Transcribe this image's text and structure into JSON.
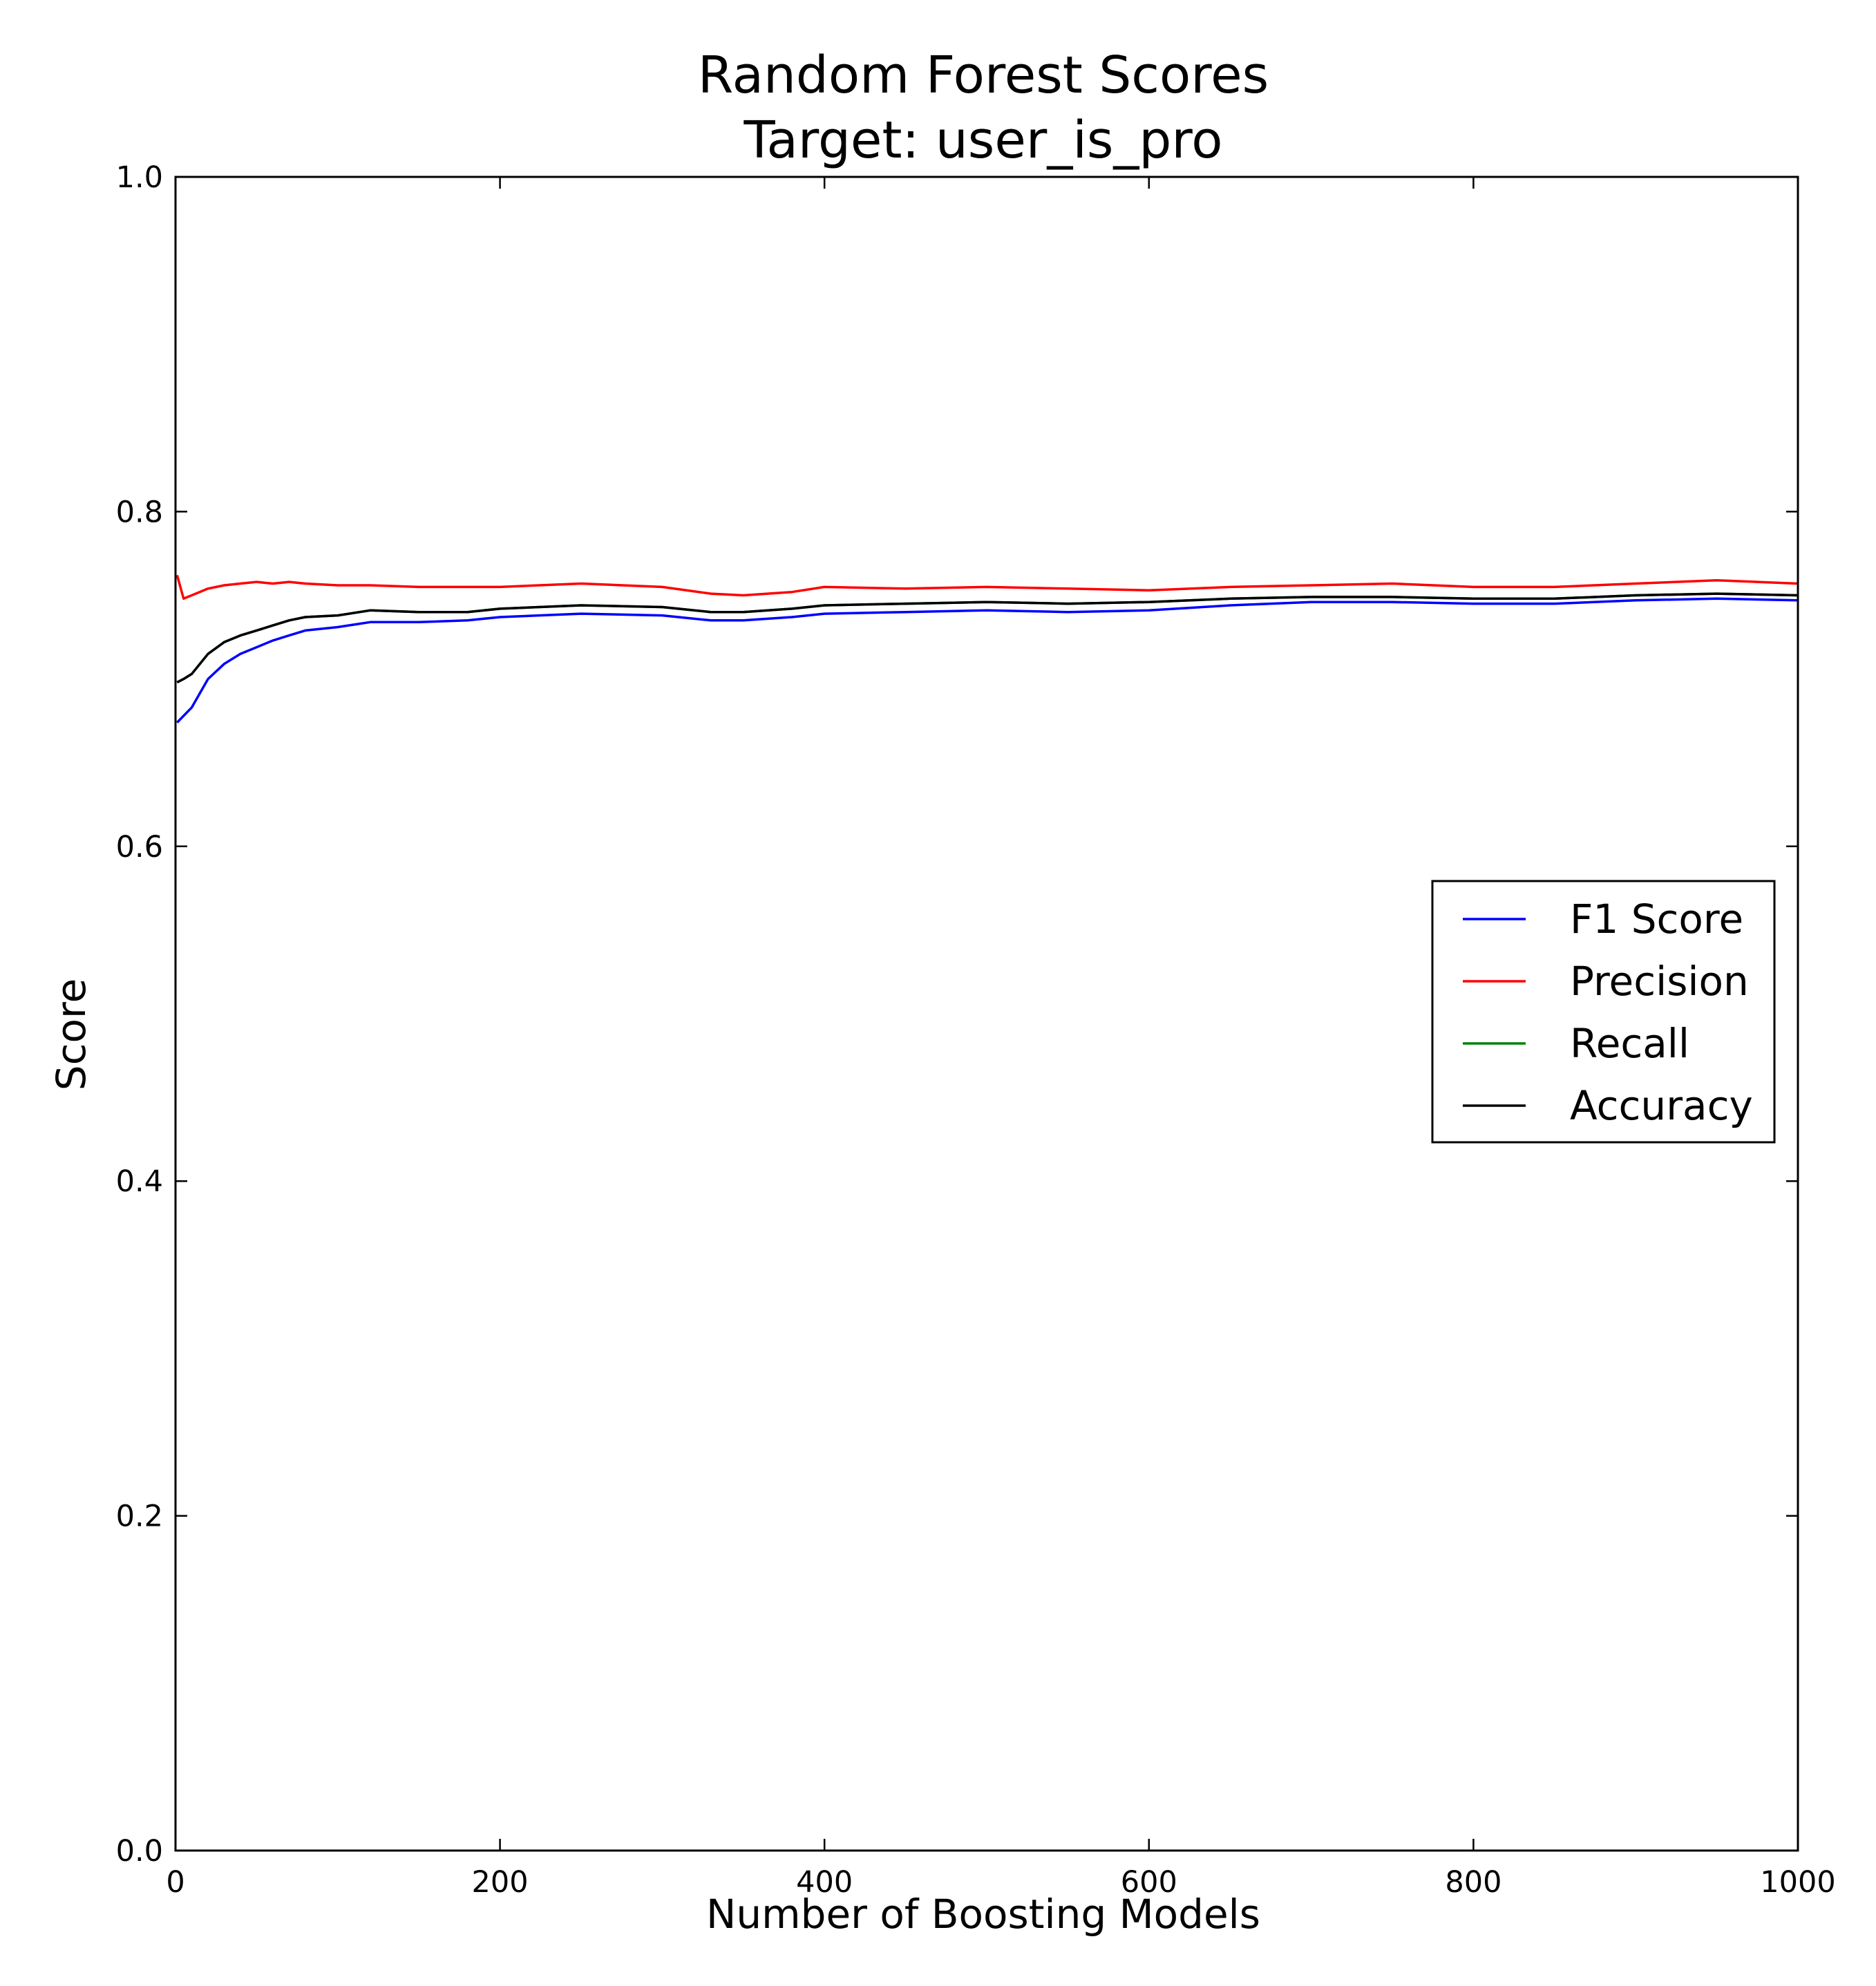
{
  "chart_data": {
    "type": "line",
    "title": "Random Forest Scores",
    "subtitle": "Target: user_is_pro",
    "xlabel": "Number of Boosting Models",
    "ylabel": "Score",
    "xlim": [
      0,
      1000
    ],
    "ylim": [
      0.0,
      1.0
    ],
    "xticks": [
      0,
      200,
      400,
      600,
      800,
      1000
    ],
    "xtick_labels": [
      "0",
      "200",
      "400",
      "600",
      "800",
      "1000"
    ],
    "yticks": [
      0.0,
      0.2,
      0.4,
      0.6,
      0.8,
      1.0
    ],
    "ytick_labels": [
      "0.0",
      "0.2",
      "0.4",
      "0.6",
      "0.8",
      "1.0"
    ],
    "grid": false,
    "legend_position": "center-right",
    "x": [
      1,
      5,
      10,
      20,
      30,
      40,
      50,
      60,
      70,
      80,
      100,
      120,
      150,
      180,
      200,
      250,
      300,
      330,
      350,
      380,
      400,
      450,
      500,
      550,
      600,
      650,
      700,
      750,
      800,
      850,
      900,
      950,
      1000
    ],
    "series": [
      {
        "name": "F1 Score",
        "color": "#0000ff",
        "values": [
          0.674,
          0.678,
          0.683,
          0.7,
          0.709,
          0.715,
          0.719,
          0.723,
          0.726,
          0.729,
          0.731,
          0.734,
          0.734,
          0.735,
          0.737,
          0.739,
          0.738,
          0.735,
          0.735,
          0.737,
          0.739,
          0.74,
          0.741,
          0.74,
          0.741,
          0.744,
          0.746,
          0.746,
          0.745,
          0.745,
          0.747,
          0.748,
          0.747
        ]
      },
      {
        "name": "Precision",
        "color": "#ff0000",
        "values": [
          0.762,
          0.748,
          0.75,
          0.754,
          0.756,
          0.757,
          0.758,
          0.757,
          0.758,
          0.757,
          0.756,
          0.756,
          0.755,
          0.755,
          0.755,
          0.757,
          0.755,
          0.751,
          0.75,
          0.752,
          0.755,
          0.754,
          0.755,
          0.754,
          0.753,
          0.755,
          0.756,
          0.757,
          0.755,
          0.755,
          0.757,
          0.759,
          0.757
        ]
      },
      {
        "name": "Recall",
        "color": "#008000",
        "values": [
          0.698,
          0.7,
          0.703,
          0.715,
          0.722,
          0.726,
          0.729,
          0.732,
          0.735,
          0.737,
          0.738,
          0.741,
          0.74,
          0.74,
          0.742,
          0.744,
          0.743,
          0.74,
          0.74,
          0.742,
          0.744,
          0.745,
          0.746,
          0.745,
          0.746,
          0.748,
          0.749,
          0.749,
          0.748,
          0.748,
          0.75,
          0.751,
          0.75
        ]
      },
      {
        "name": "Accuracy",
        "color": "#000000",
        "values": [
          0.698,
          0.7,
          0.703,
          0.715,
          0.722,
          0.726,
          0.729,
          0.732,
          0.735,
          0.737,
          0.738,
          0.741,
          0.74,
          0.74,
          0.742,
          0.744,
          0.743,
          0.74,
          0.74,
          0.742,
          0.744,
          0.745,
          0.746,
          0.745,
          0.746,
          0.748,
          0.749,
          0.749,
          0.748,
          0.748,
          0.75,
          0.751,
          0.75
        ]
      }
    ]
  }
}
